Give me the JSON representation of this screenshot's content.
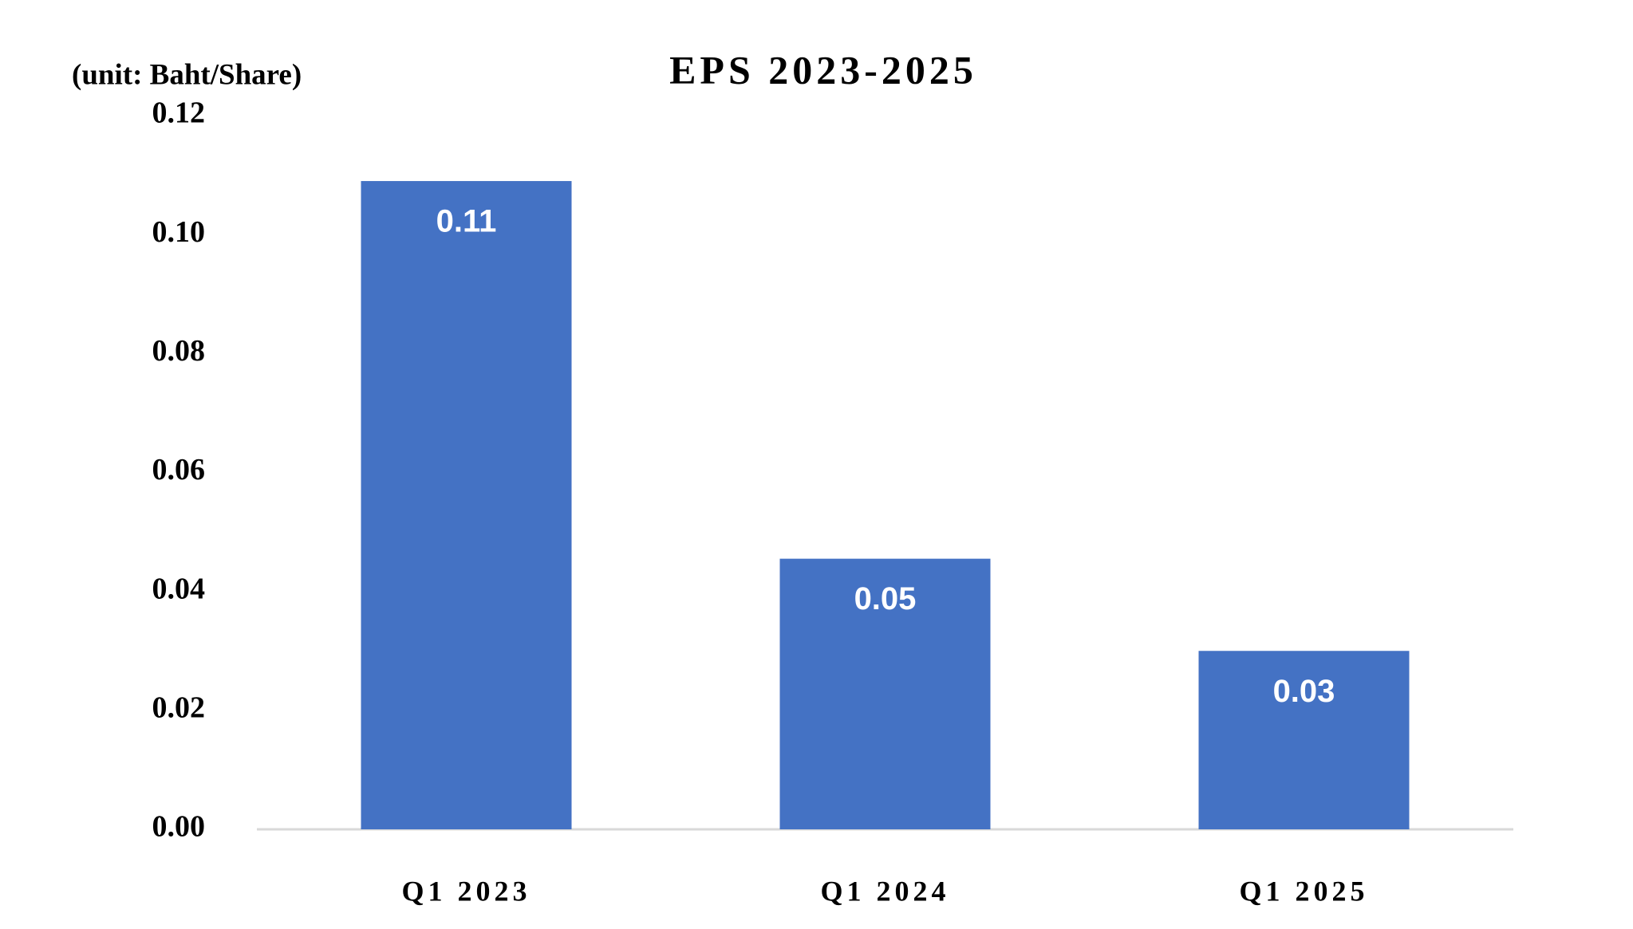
{
  "chart_data": {
    "type": "bar",
    "title": "EPS 2023-2025",
    "unit_label": "(unit: Baht/Share)",
    "categories": [
      "Q1 2023",
      "Q1 2024",
      "Q1 2025"
    ],
    "values": [
      0.109,
      0.0455,
      0.03
    ],
    "value_labels": [
      "0.11",
      "0.05",
      "0.03"
    ],
    "color": "#4472c4",
    "ylim": [
      0,
      0.12
    ],
    "yticks": [
      {
        "value": 0,
        "label": "0.00"
      },
      0.02,
      0.04,
      0.06,
      0.08,
      {
        "value": 0.1,
        "label": "0.10"
      },
      0.12
    ],
    "grid": false
  }
}
